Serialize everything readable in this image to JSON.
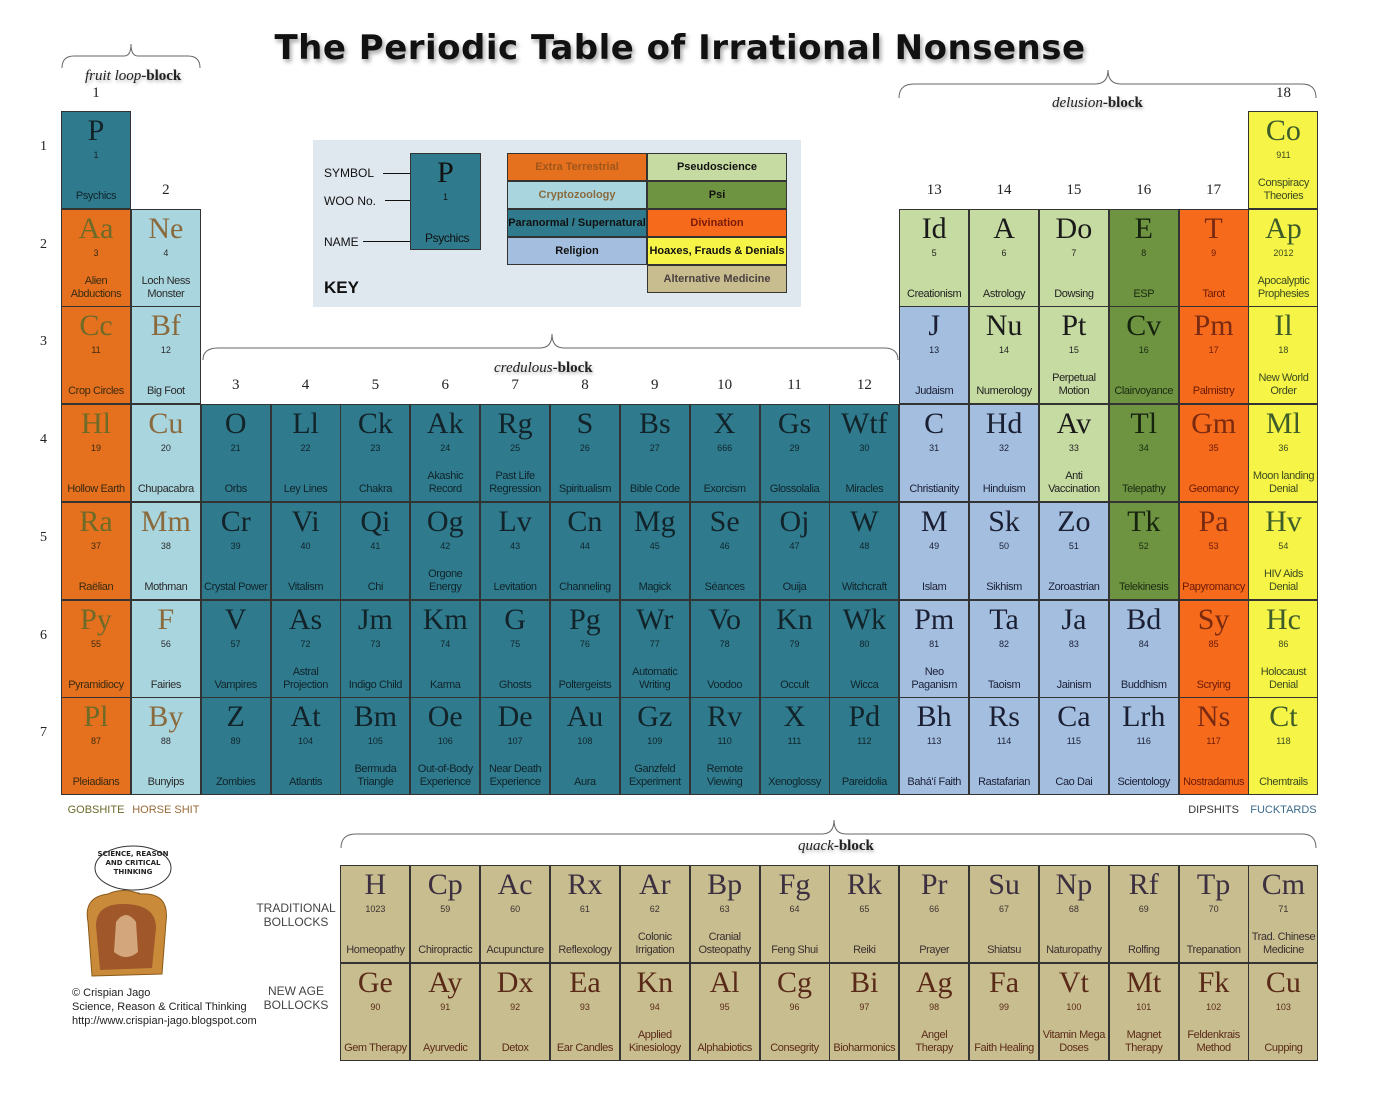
{
  "title": "The Periodic Table of Irrational Nonsense",
  "colors": {
    "pn": "#2f7b8d",
    "et": "#e5711f",
    "cz": "#a9d5df",
    "rel": "#a4bedf",
    "ps": "#c6dba1",
    "psi": "#6e9442",
    "div": "#f66a1b",
    "hx": "#f6f446",
    "am": "#c8bd8f"
  },
  "blocks": {
    "fruit_loop": {
      "italic": "fruit loop",
      "bold": "-block"
    },
    "delusion": {
      "italic": "delusion",
      "bold": "-block"
    },
    "credulous": {
      "italic": "credulous",
      "bold": "-block"
    },
    "quack": {
      "italic": "quack",
      "bold": "-block"
    }
  },
  "groups": [
    "1",
    "2",
    "3",
    "4",
    "5",
    "6",
    "7",
    "8",
    "9",
    "10",
    "11",
    "12",
    "13",
    "14",
    "15",
    "16",
    "17",
    "18"
  ],
  "periods": [
    "1",
    "2",
    "3",
    "4",
    "5",
    "6",
    "7"
  ],
  "key": {
    "symbol_label": "SYMBOL",
    "woo_label": "WOO No.",
    "name_label": "NAME",
    "key_label": "KEY",
    "sample": {
      "symbol": "P",
      "number": "1",
      "name": "Psychics"
    },
    "legend": [
      {
        "label": "Extra Terrestrial",
        "cat": "et"
      },
      {
        "label": "Pseudoscience",
        "cat": "ps"
      },
      {
        "label": "Cryptozoology",
        "cat": "cz"
      },
      {
        "label": "Psi",
        "cat": "psi"
      },
      {
        "label": "Paranormal / Supernatural",
        "cat": "pn"
      },
      {
        "label": "Divination",
        "cat": "div"
      },
      {
        "label": "Religion",
        "cat": "rel"
      },
      {
        "label": "Hoaxes, Frauds & Denials",
        "cat": "hx"
      },
      {
        "label": "Alternative Medicine",
        "cat": "am"
      }
    ]
  },
  "elements": [
    {
      "symbol": "P",
      "number": "1",
      "name": "Psychics",
      "cat": "pn",
      "period": 1,
      "group": 1
    },
    {
      "symbol": "Co",
      "number": "911",
      "name": "Conspiracy Theories",
      "cat": "hx",
      "period": 1,
      "group": 18
    },
    {
      "symbol": "Aa",
      "number": "3",
      "name": "Alien Abductions",
      "cat": "et",
      "period": 2,
      "group": 1
    },
    {
      "symbol": "Ne",
      "number": "4",
      "name": "Loch Ness Monster",
      "cat": "cz",
      "period": 2,
      "group": 2
    },
    {
      "symbol": "Id",
      "number": "5",
      "name": "Creationism",
      "cat": "ps",
      "period": 2,
      "group": 13
    },
    {
      "symbol": "A",
      "number": "6",
      "name": "Astrology",
      "cat": "ps",
      "period": 2,
      "group": 14
    },
    {
      "symbol": "Do",
      "number": "7",
      "name": "Dowsing",
      "cat": "ps",
      "period": 2,
      "group": 15
    },
    {
      "symbol": "E",
      "number": "8",
      "name": "ESP",
      "cat": "psi",
      "period": 2,
      "group": 16
    },
    {
      "symbol": "T",
      "number": "9",
      "name": "Tarot",
      "cat": "div",
      "period": 2,
      "group": 17
    },
    {
      "symbol": "Ap",
      "number": "2012",
      "name": "Apocalyptic Prophesies",
      "cat": "hx",
      "period": 2,
      "group": 18
    },
    {
      "symbol": "Cc",
      "number": "11",
      "name": "Crop Circles",
      "cat": "et",
      "period": 3,
      "group": 1
    },
    {
      "symbol": "Bf",
      "number": "12",
      "name": "Big Foot",
      "cat": "cz",
      "period": 3,
      "group": 2
    },
    {
      "symbol": "J",
      "number": "13",
      "name": "Judaism",
      "cat": "rel",
      "period": 3,
      "group": 13
    },
    {
      "symbol": "Nu",
      "number": "14",
      "name": "Numerology",
      "cat": "ps",
      "period": 3,
      "group": 14
    },
    {
      "symbol": "Pt",
      "number": "15",
      "name": "Perpetual Motion",
      "cat": "ps",
      "period": 3,
      "group": 15
    },
    {
      "symbol": "Cv",
      "number": "16",
      "name": "Clairvoyance",
      "cat": "psi",
      "period": 3,
      "group": 16
    },
    {
      "symbol": "Pm",
      "number": "17",
      "name": "Palmistry",
      "cat": "div",
      "period": 3,
      "group": 17
    },
    {
      "symbol": "Il",
      "number": "18",
      "name": "New World Order",
      "cat": "hx",
      "period": 3,
      "group": 18
    },
    {
      "symbol": "Hl",
      "number": "19",
      "name": "Hollow Earth",
      "cat": "et",
      "period": 4,
      "group": 1
    },
    {
      "symbol": "Cu",
      "number": "20",
      "name": "Chupacabra",
      "cat": "cz",
      "period": 4,
      "group": 2
    },
    {
      "symbol": "O",
      "number": "21",
      "name": "Orbs",
      "cat": "pn",
      "period": 4,
      "group": 3
    },
    {
      "symbol": "Ll",
      "number": "22",
      "name": "Ley Lines",
      "cat": "pn",
      "period": 4,
      "group": 4
    },
    {
      "symbol": "Ck",
      "number": "23",
      "name": "Chakra",
      "cat": "pn",
      "period": 4,
      "group": 5
    },
    {
      "symbol": "Ak",
      "number": "24",
      "name": "Akashic Record",
      "cat": "pn",
      "period": 4,
      "group": 6
    },
    {
      "symbol": "Rg",
      "number": "25",
      "name": "Past Life Regression",
      "cat": "pn",
      "period": 4,
      "group": 7
    },
    {
      "symbol": "S",
      "number": "26",
      "name": "Spiritualism",
      "cat": "pn",
      "period": 4,
      "group": 8
    },
    {
      "symbol": "Bs",
      "number": "27",
      "name": "Bible Code",
      "cat": "pn",
      "period": 4,
      "group": 9
    },
    {
      "symbol": "X",
      "number": "666",
      "name": "Exorcism",
      "cat": "pn",
      "period": 4,
      "group": 10
    },
    {
      "symbol": "Gs",
      "number": "29",
      "name": "Glossolalia",
      "cat": "pn",
      "period": 4,
      "group": 11
    },
    {
      "symbol": "Wtf",
      "number": "30",
      "name": "Miracles",
      "cat": "pn",
      "period": 4,
      "group": 12
    },
    {
      "symbol": "C",
      "number": "31",
      "name": "Christianity",
      "cat": "rel",
      "period": 4,
      "group": 13
    },
    {
      "symbol": "Hd",
      "number": "32",
      "name": "Hinduism",
      "cat": "rel",
      "period": 4,
      "group": 14
    },
    {
      "symbol": "Av",
      "number": "33",
      "name": "Anti Vaccination",
      "cat": "ps",
      "period": 4,
      "group": 15
    },
    {
      "symbol": "Tl",
      "number": "34",
      "name": "Telepathy",
      "cat": "psi",
      "period": 4,
      "group": 16
    },
    {
      "symbol": "Gm",
      "number": "35",
      "name": "Geomancy",
      "cat": "div",
      "period": 4,
      "group": 17
    },
    {
      "symbol": "Ml",
      "number": "36",
      "name": "Moon landing Denial",
      "cat": "hx",
      "period": 4,
      "group": 18
    },
    {
      "symbol": "Ra",
      "number": "37",
      "name": "Raëlian",
      "cat": "et",
      "period": 5,
      "group": 1
    },
    {
      "symbol": "Mm",
      "number": "38",
      "name": "Mothman",
      "cat": "cz",
      "period": 5,
      "group": 2
    },
    {
      "symbol": "Cr",
      "number": "39",
      "name": "Crystal Power",
      "cat": "pn",
      "period": 5,
      "group": 3
    },
    {
      "symbol": "Vi",
      "number": "40",
      "name": "Vitalism",
      "cat": "pn",
      "period": 5,
      "group": 4
    },
    {
      "symbol": "Qi",
      "number": "41",
      "name": "Chi",
      "cat": "pn",
      "period": 5,
      "group": 5
    },
    {
      "symbol": "Og",
      "number": "42",
      "name": "Orgone Energy",
      "cat": "pn",
      "period": 5,
      "group": 6
    },
    {
      "symbol": "Lv",
      "number": "43",
      "name": "Levitation",
      "cat": "pn",
      "period": 5,
      "group": 7
    },
    {
      "symbol": "Cn",
      "number": "44",
      "name": "Channeling",
      "cat": "pn",
      "period": 5,
      "group": 8
    },
    {
      "symbol": "Mg",
      "number": "45",
      "name": "Magick",
      "cat": "pn",
      "period": 5,
      "group": 9
    },
    {
      "symbol": "Se",
      "number": "46",
      "name": "Séances",
      "cat": "pn",
      "period": 5,
      "group": 10
    },
    {
      "symbol": "Oj",
      "number": "47",
      "name": "Ouija",
      "cat": "pn",
      "period": 5,
      "group": 11
    },
    {
      "symbol": "W",
      "number": "48",
      "name": "Witchcraft",
      "cat": "pn",
      "period": 5,
      "group": 12
    },
    {
      "symbol": "M",
      "number": "49",
      "name": "Islam",
      "cat": "rel",
      "period": 5,
      "group": 13
    },
    {
      "symbol": "Sk",
      "number": "50",
      "name": "Sikhism",
      "cat": "rel",
      "period": 5,
      "group": 14
    },
    {
      "symbol": "Zo",
      "number": "51",
      "name": "Zoroastrian",
      "cat": "rel",
      "period": 5,
      "group": 15
    },
    {
      "symbol": "Tk",
      "number": "52",
      "name": "Telekinesis",
      "cat": "psi",
      "period": 5,
      "group": 16
    },
    {
      "symbol": "Pa",
      "number": "53",
      "name": "Papyromancy",
      "cat": "div",
      "period": 5,
      "group": 17
    },
    {
      "symbol": "Hv",
      "number": "54",
      "name": "HIV Aids Denial",
      "cat": "hx",
      "period": 5,
      "group": 18
    },
    {
      "symbol": "Py",
      "number": "55",
      "name": "Pyramidiocy",
      "cat": "et",
      "period": 6,
      "group": 1
    },
    {
      "symbol": "F",
      "number": "56",
      "name": "Fairies",
      "cat": "cz",
      "period": 6,
      "group": 2
    },
    {
      "symbol": "V",
      "number": "57",
      "name": "Vampires",
      "cat": "pn",
      "period": 6,
      "group": 3
    },
    {
      "symbol": "As",
      "number": "72",
      "name": "Astral Projection",
      "cat": "pn",
      "period": 6,
      "group": 4
    },
    {
      "symbol": "Jm",
      "number": "73",
      "name": "Indigo Child",
      "cat": "pn",
      "period": 6,
      "group": 5
    },
    {
      "symbol": "Km",
      "number": "74",
      "name": "Karma",
      "cat": "pn",
      "period": 6,
      "group": 6
    },
    {
      "symbol": "G",
      "number": "75",
      "name": "Ghosts",
      "cat": "pn",
      "period": 6,
      "group": 7
    },
    {
      "symbol": "Pg",
      "number": "76",
      "name": "Poltergeists",
      "cat": "pn",
      "period": 6,
      "group": 8
    },
    {
      "symbol": "Wr",
      "number": "77",
      "name": "Automatic Writing",
      "cat": "pn",
      "period": 6,
      "group": 9
    },
    {
      "symbol": "Vo",
      "number": "78",
      "name": "Voodoo",
      "cat": "pn",
      "period": 6,
      "group": 10
    },
    {
      "symbol": "Kn",
      "number": "79",
      "name": "Occult",
      "cat": "pn",
      "period": 6,
      "group": 11
    },
    {
      "symbol": "Wk",
      "number": "80",
      "name": "Wicca",
      "cat": "pn",
      "period": 6,
      "group": 12
    },
    {
      "symbol": "Pm",
      "number": "81",
      "name": "Neo Paganism",
      "cat": "rel",
      "period": 6,
      "group": 13
    },
    {
      "symbol": "Ta",
      "number": "82",
      "name": "Taoism",
      "cat": "rel",
      "period": 6,
      "group": 14
    },
    {
      "symbol": "Ja",
      "number": "83",
      "name": "Jainism",
      "cat": "rel",
      "period": 6,
      "group": 15
    },
    {
      "symbol": "Bd",
      "number": "84",
      "name": "Buddhism",
      "cat": "rel",
      "period": 6,
      "group": 16
    },
    {
      "symbol": "Sy",
      "number": "85",
      "name": "Scrying",
      "cat": "div",
      "period": 6,
      "group": 17
    },
    {
      "symbol": "Hc",
      "number": "86",
      "name": "Holocaust Denial",
      "cat": "hx",
      "period": 6,
      "group": 18
    },
    {
      "symbol": "Pl",
      "number": "87",
      "name": "Pleiadians",
      "cat": "et",
      "period": 7,
      "group": 1
    },
    {
      "symbol": "By",
      "number": "88",
      "name": "Bunyips",
      "cat": "cz",
      "period": 7,
      "group": 2
    },
    {
      "symbol": "Z",
      "number": "89",
      "name": "Zombies",
      "cat": "pn",
      "period": 7,
      "group": 3
    },
    {
      "symbol": "At",
      "number": "104",
      "name": "Atlantis",
      "cat": "pn",
      "period": 7,
      "group": 4
    },
    {
      "symbol": "Bm",
      "number": "105",
      "name": "Bermuda Triangle",
      "cat": "pn",
      "period": 7,
      "group": 5
    },
    {
      "symbol": "Oe",
      "number": "106",
      "name": "Out-of-Body Experience",
      "cat": "pn",
      "period": 7,
      "group": 6
    },
    {
      "symbol": "De",
      "number": "107",
      "name": "Near Death Experience",
      "cat": "pn",
      "period": 7,
      "group": 7
    },
    {
      "symbol": "Au",
      "number": "108",
      "name": "Aura",
      "cat": "pn",
      "period": 7,
      "group": 8
    },
    {
      "symbol": "Gz",
      "number": "109",
      "name": "Ganzfeld Experiment",
      "cat": "pn",
      "period": 7,
      "group": 9
    },
    {
      "symbol": "Rv",
      "number": "110",
      "name": "Remote Viewing",
      "cat": "pn",
      "period": 7,
      "group": 10
    },
    {
      "symbol": "X",
      "number": "111",
      "name": "Xenoglossy",
      "cat": "pn",
      "period": 7,
      "group": 11
    },
    {
      "symbol": "Pd",
      "number": "112",
      "name": "Pareidolia",
      "cat": "pn",
      "period": 7,
      "group": 12
    },
    {
      "symbol": "Bh",
      "number": "113",
      "name": "Bahá'í Faith",
      "cat": "rel",
      "period": 7,
      "group": 13
    },
    {
      "symbol": "Rs",
      "number": "114",
      "name": "Rastafarian",
      "cat": "rel",
      "period": 7,
      "group": 14
    },
    {
      "symbol": "Ca",
      "number": "115",
      "name": "Cao Dai",
      "cat": "rel",
      "period": 7,
      "group": 15
    },
    {
      "symbol": "Lrh",
      "number": "116",
      "name": "Scientology",
      "cat": "rel",
      "period": 7,
      "group": 16
    },
    {
      "symbol": "Ns",
      "number": "117",
      "name": "Nostradamus",
      "cat": "div",
      "period": 7,
      "group": 17
    },
    {
      "symbol": "Ct",
      "number": "118",
      "name": "Chemtrails",
      "cat": "hx",
      "period": 7,
      "group": 18
    }
  ],
  "quack": {
    "rows": [
      {
        "label": "TRADITIONAL BOLLOCKS",
        "items": [
          {
            "symbol": "H",
            "number": "1023",
            "name": "Homeopathy"
          },
          {
            "symbol": "Cp",
            "number": "59",
            "name": "Chiropractic"
          },
          {
            "symbol": "Ac",
            "number": "60",
            "name": "Acupuncture"
          },
          {
            "symbol": "Rx",
            "number": "61",
            "name": "Reflexology"
          },
          {
            "symbol": "Ar",
            "number": "62",
            "name": "Colonic Irrigation"
          },
          {
            "symbol": "Bp",
            "number": "63",
            "name": "Cranial Osteopathy"
          },
          {
            "symbol": "Fg",
            "number": "64",
            "name": "Feng Shui"
          },
          {
            "symbol": "Rk",
            "number": "65",
            "name": "Reiki"
          },
          {
            "symbol": "Pr",
            "number": "66",
            "name": "Prayer"
          },
          {
            "symbol": "Su",
            "number": "67",
            "name": "Shiatsu"
          },
          {
            "symbol": "Np",
            "number": "68",
            "name": "Naturopathy"
          },
          {
            "symbol": "Rf",
            "number": "69",
            "name": "Rolfing"
          },
          {
            "symbol": "Tp",
            "number": "70",
            "name": "Trepanation"
          },
          {
            "symbol": "Cm",
            "number": "71",
            "name": "Trad. Chinese Medicine"
          }
        ]
      },
      {
        "label": "NEW AGE BOLLOCKS",
        "items": [
          {
            "symbol": "Ge",
            "number": "90",
            "name": "Gem Therapy"
          },
          {
            "symbol": "Ay",
            "number": "91",
            "name": "Ayurvedic"
          },
          {
            "symbol": "Dx",
            "number": "92",
            "name": "Detox"
          },
          {
            "symbol": "Ea",
            "number": "93",
            "name": "Ear Candles"
          },
          {
            "symbol": "Kn",
            "number": "94",
            "name": "Applied Kinesiology"
          },
          {
            "symbol": "Al",
            "number": "95",
            "name": "Alphabiotics"
          },
          {
            "symbol": "Cg",
            "number": "96",
            "name": "Consegrity"
          },
          {
            "symbol": "Bi",
            "number": "97",
            "name": "Bioharmonics"
          },
          {
            "symbol": "Ag",
            "number": "98",
            "name": "Angel Therapy"
          },
          {
            "symbol": "Fa",
            "number": "99",
            "name": "Faith Healing"
          },
          {
            "symbol": "Vt",
            "number": "100",
            "name": "Vitamin Mega Doses"
          },
          {
            "symbol": "Mt",
            "number": "101",
            "name": "Magnet Therapy"
          },
          {
            "symbol": "Fk",
            "number": "102",
            "name": "Feldenkrais Method"
          },
          {
            "symbol": "Cu",
            "number": "103",
            "name": "Cupping"
          }
        ]
      }
    ]
  },
  "column_labels": {
    "g1": "GOBSHITE",
    "g2": "HORSE SHIT",
    "g17": "DIPSHITS",
    "g18": "FUCKTARDS"
  },
  "cartoon_bubble": "SCIENCE, REASON AND CRITICAL THINKING",
  "credit": {
    "line1": "© Crispian Jago",
    "line2": "Science, Reason & Critical Thinking",
    "line3": "http://www.crispian-jago.blogspot.com"
  }
}
